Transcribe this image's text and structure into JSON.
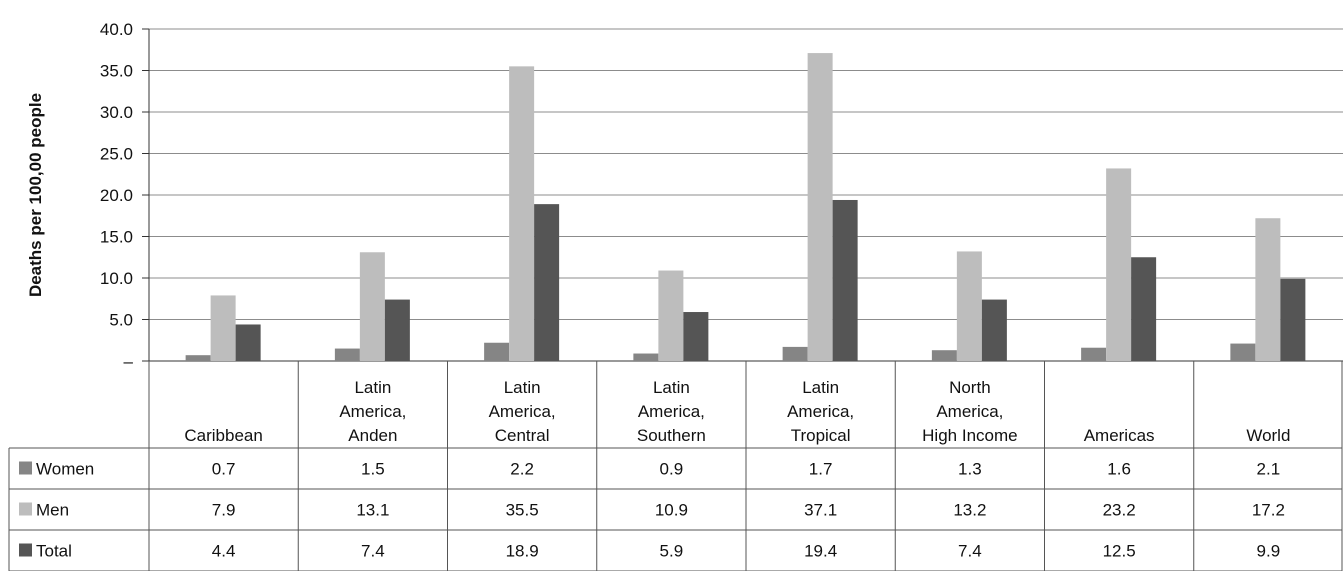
{
  "chart_data": {
    "type": "bar",
    "ylabel": "Deaths per 100,00 people",
    "ylim": [
      0,
      40
    ],
    "y_ticks": [
      "40.0",
      "35.0",
      "30.0",
      "25.0",
      "20.0",
      "15.0",
      "10.0",
      "5.0",
      "–"
    ],
    "grid": true,
    "categories": [
      [
        "Caribbean"
      ],
      [
        "Latin",
        "America,",
        "Anden"
      ],
      [
        "Latin",
        "America,",
        "Central"
      ],
      [
        "Latin",
        "America,",
        "Southern"
      ],
      [
        "Latin",
        "America,",
        "Tropical"
      ],
      [
        "North",
        "America,",
        "High Income"
      ],
      [
        "Americas"
      ],
      [
        "World"
      ]
    ],
    "series": [
      {
        "name": "Women",
        "color": "#858585",
        "values": [
          0.7,
          1.5,
          2.2,
          0.9,
          1.7,
          1.3,
          1.6,
          2.1
        ],
        "labels": [
          "0.7",
          "1.5",
          "2.2",
          "0.9",
          "1.7",
          "1.3",
          "1.6",
          "2.1"
        ]
      },
      {
        "name": "Men",
        "color": "#bdbdbd",
        "values": [
          7.9,
          13.1,
          35.5,
          10.9,
          37.1,
          13.2,
          23.2,
          17.2
        ],
        "labels": [
          "7.9",
          "13.1",
          "35.5",
          "10.9",
          "37.1",
          "13.2",
          "23.2",
          "17.2"
        ]
      },
      {
        "name": "Total",
        "color": "#555555",
        "values": [
          4.4,
          7.4,
          18.9,
          5.9,
          19.4,
          7.4,
          12.5,
          9.9
        ],
        "labels": [
          "4.4",
          "7.4",
          "18.9",
          "5.9",
          "19.4",
          "7.4",
          "12.5",
          "9.9"
        ]
      }
    ]
  }
}
